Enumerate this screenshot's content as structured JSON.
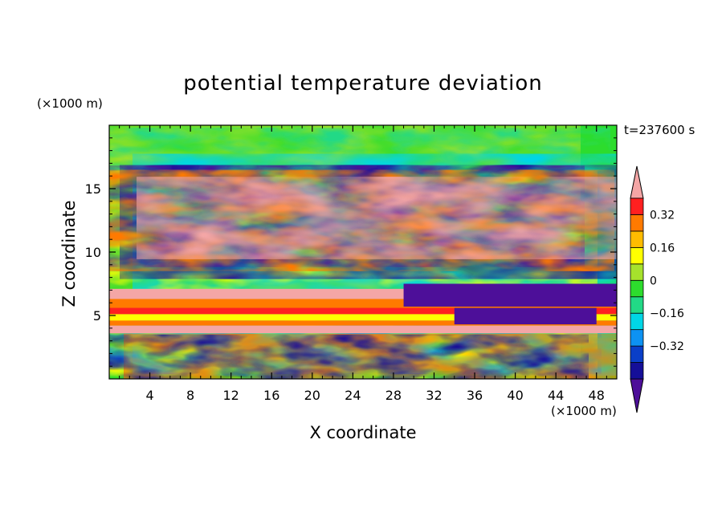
{
  "chart_data": {
    "type": "heatmap",
    "title": "potential temperature deviation",
    "xlabel": "X coordinate",
    "ylabel": "Z coordinate",
    "x_unit": "(×1000 m)",
    "y_unit": "(×1000 m)",
    "time_label": "t=237600 s",
    "xlim": [
      0,
      50
    ],
    "ylim": [
      0,
      20
    ],
    "x_ticks": [
      4,
      8,
      12,
      16,
      20,
      24,
      28,
      32,
      36,
      40,
      44,
      48
    ],
    "y_ticks": [
      5,
      10,
      15
    ],
    "x_tick_labels": [
      "4",
      "8",
      "12",
      "16",
      "20",
      "24",
      "28",
      "32",
      "36",
      "40",
      "44",
      "48"
    ],
    "y_tick_labels": [
      "5",
      "10",
      "15"
    ],
    "colorbar": {
      "levels": [
        -0.48,
        -0.4,
        -0.32,
        -0.24,
        -0.16,
        -0.08,
        0,
        0.08,
        0.16,
        0.24,
        0.32,
        0.4
      ],
      "colors": [
        "#4d0f99",
        "#150f98",
        "#0a3fc8",
        "#0d92f2",
        "#00d6e6",
        "#22d986",
        "#2ddc2d",
        "#a6e22c",
        "#ffff00",
        "#ffbc00",
        "#ff7a00",
        "#ff2020",
        "#f4a6a6"
      ],
      "tick_values": [
        -0.32,
        -0.16,
        0,
        0.16,
        0.32
      ],
      "tick_labels": [
        "−0.32",
        "−0.16",
        "0",
        "0.16",
        "0.32"
      ],
      "extend": "both"
    }
  }
}
